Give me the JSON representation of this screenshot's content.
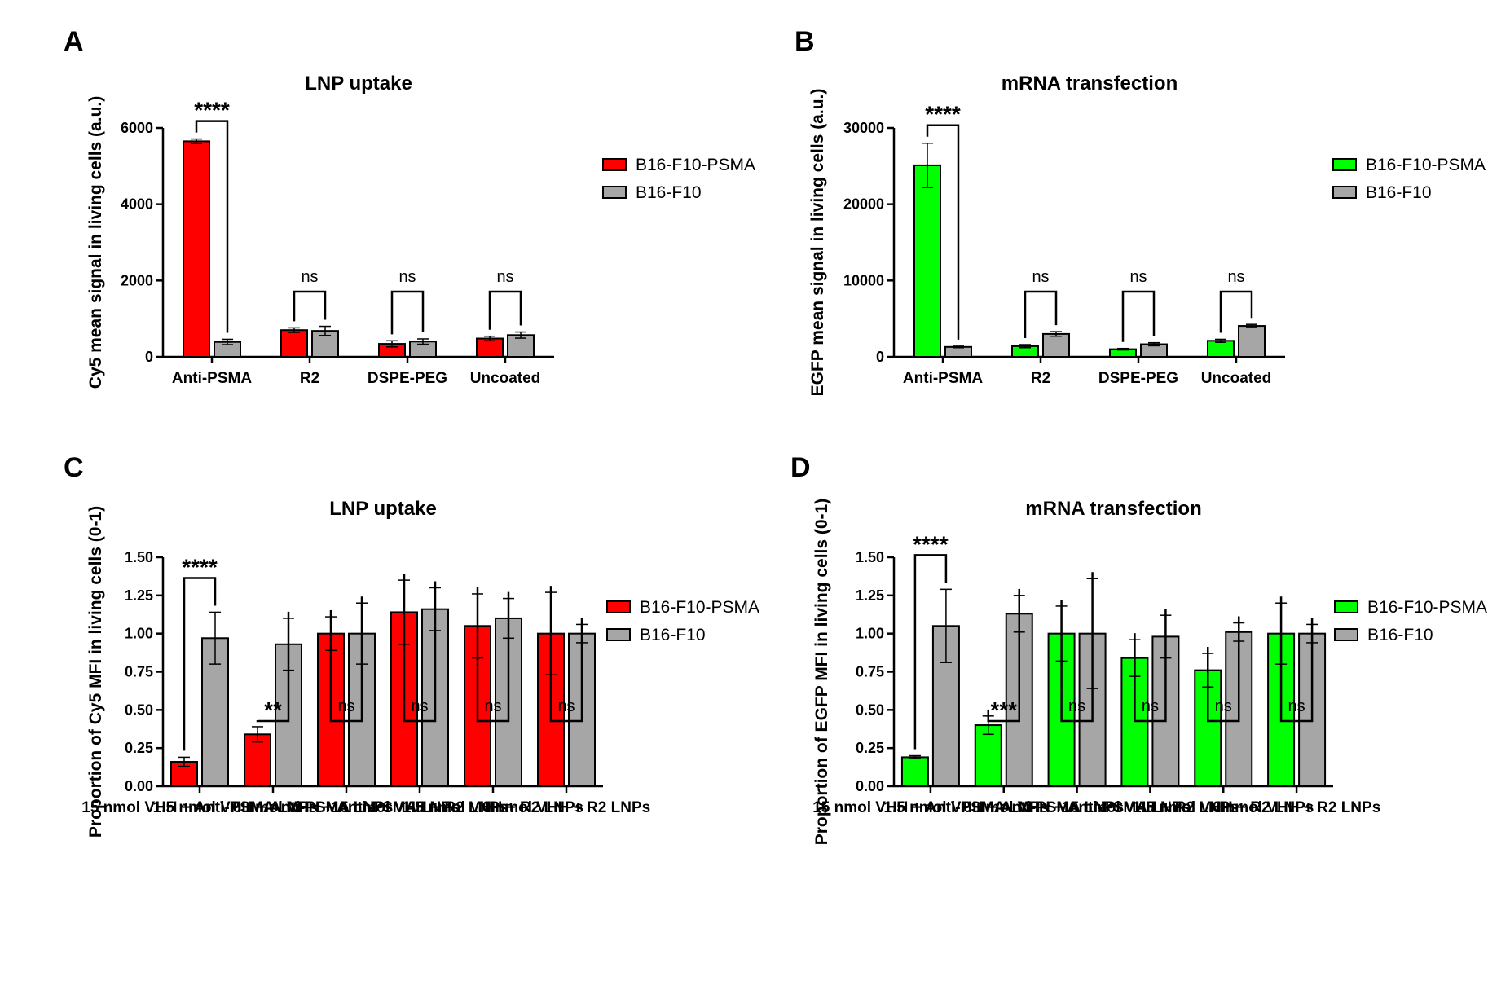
{
  "chart_data": [
    {
      "panel": "A",
      "type": "bar",
      "title": "LNP uptake",
      "ylabel": "Cy5 mean signal in living cells (a.u.)",
      "ylim": [
        0,
        6000
      ],
      "yticks": [
        "0",
        "2000",
        "4000",
        "6000"
      ],
      "categories": [
        "Anti-PSMA",
        "R2",
        "DSPE-PEG",
        "Uncoated"
      ],
      "series": [
        {
          "name": "B16-F10-PSMA",
          "color": "#ff0000",
          "values": [
            5650,
            700,
            340,
            480
          ],
          "errors": [
            60,
            60,
            80,
            60
          ]
        },
        {
          "name": "B16-F10",
          "color": "#a6a6a6",
          "values": [
            390,
            680,
            400,
            570
          ],
          "errors": [
            70,
            120,
            70,
            80
          ]
        }
      ],
      "significance": [
        "****",
        "ns",
        "ns",
        "ns"
      ],
      "legend": "right",
      "grid": false
    },
    {
      "panel": "B",
      "type": "bar",
      "title": "mRNA transfection",
      "ylabel": "EGFP mean signal in living cells (a.u.)",
      "ylim": [
        0,
        30000
      ],
      "yticks": [
        "0",
        "10000",
        "20000",
        "30000"
      ],
      "categories": [
        "Anti-PSMA",
        "R2",
        "DSPE-PEG",
        "Uncoated"
      ],
      "series": [
        {
          "name": "B16-F10-PSMA",
          "color": "#00ff00",
          "values": [
            25100,
            1400,
            1000,
            2100
          ],
          "errors": [
            2900,
            200,
            100,
            200
          ]
        },
        {
          "name": "B16-F10",
          "color": "#a6a6a6",
          "values": [
            1300,
            3000,
            1650,
            4050
          ],
          "errors": [
            100,
            300,
            200,
            200
          ]
        }
      ],
      "significance": [
        "****",
        "ns",
        "ns",
        "ns"
      ],
      "legend": "right",
      "grid": false
    },
    {
      "panel": "C",
      "type": "bar",
      "title": "LNP uptake",
      "ylabel": "Proportion of Cy5 MFI in living cells (0-1)",
      "ylim": [
        0,
        1.5
      ],
      "yticks": [
        "0.00",
        "0.25",
        "0.50",
        "0.75",
        "1.00",
        "1.25",
        "1.50"
      ],
      "categories": [
        "15 nmol VHH + Anti-PSMA LNPs",
        "1.5 nmol VHH + Anti-PSMA LNPs",
        "0 nmol VHH + Anti-PSMA LNPs",
        "15 nmol VHH + R2 LNPs",
        "1.5 nmol VHH + R2 LNPs",
        "0 nmol VHH + R2 LNPs"
      ],
      "series": [
        {
          "name": "B16-F10-PSMA",
          "color": "#ff0000",
          "values": [
            0.16,
            0.34,
            1.0,
            1.14,
            1.05,
            1.0
          ],
          "errors": [
            0.03,
            0.05,
            0.11,
            0.21,
            0.21,
            0.27
          ]
        },
        {
          "name": "B16-F10",
          "color": "#a6a6a6",
          "values": [
            0.97,
            0.93,
            1.0,
            1.16,
            1.1,
            1.0
          ],
          "errors": [
            0.17,
            0.17,
            0.2,
            0.14,
            0.13,
            0.06
          ]
        }
      ],
      "significance": [
        "****",
        "**",
        "ns",
        "ns",
        "ns",
        "ns"
      ],
      "legend": "right",
      "grid": false
    },
    {
      "panel": "D",
      "type": "bar",
      "title": "mRNA transfection",
      "ylabel": "Proportion of EGFP MFI in living cells (0-1)",
      "ylim": [
        0,
        1.5
      ],
      "yticks": [
        "0.00",
        "0.25",
        "0.50",
        "0.75",
        "1.00",
        "1.25",
        "1.50"
      ],
      "categories": [
        "15 nmol VHH + Anti-PSMA LNPs",
        "1.5 nmol VHH + Anti-PSMA LNPs",
        "0 nmol VHH + Anti-PSMA LNPs",
        "15 nmol VHH + R2 LNPs",
        "1.5 nmol VHH + R2 LNPs",
        "0 nmol VHH + R2 LNPs"
      ],
      "series": [
        {
          "name": "B16-F10-PSMA",
          "color": "#00ff00",
          "values": [
            0.19,
            0.4,
            1.0,
            0.84,
            0.76,
            1.0
          ],
          "errors": [
            0.01,
            0.06,
            0.18,
            0.12,
            0.11,
            0.2
          ]
        },
        {
          "name": "B16-F10",
          "color": "#a6a6a6",
          "values": [
            1.05,
            1.13,
            1.0,
            0.98,
            1.01,
            1.0
          ],
          "errors": [
            0.24,
            0.12,
            0.36,
            0.14,
            0.06,
            0.06
          ]
        }
      ],
      "significance": [
        "****",
        "***",
        "ns",
        "ns",
        "ns",
        "ns"
      ],
      "legend": "right",
      "grid": false
    }
  ]
}
